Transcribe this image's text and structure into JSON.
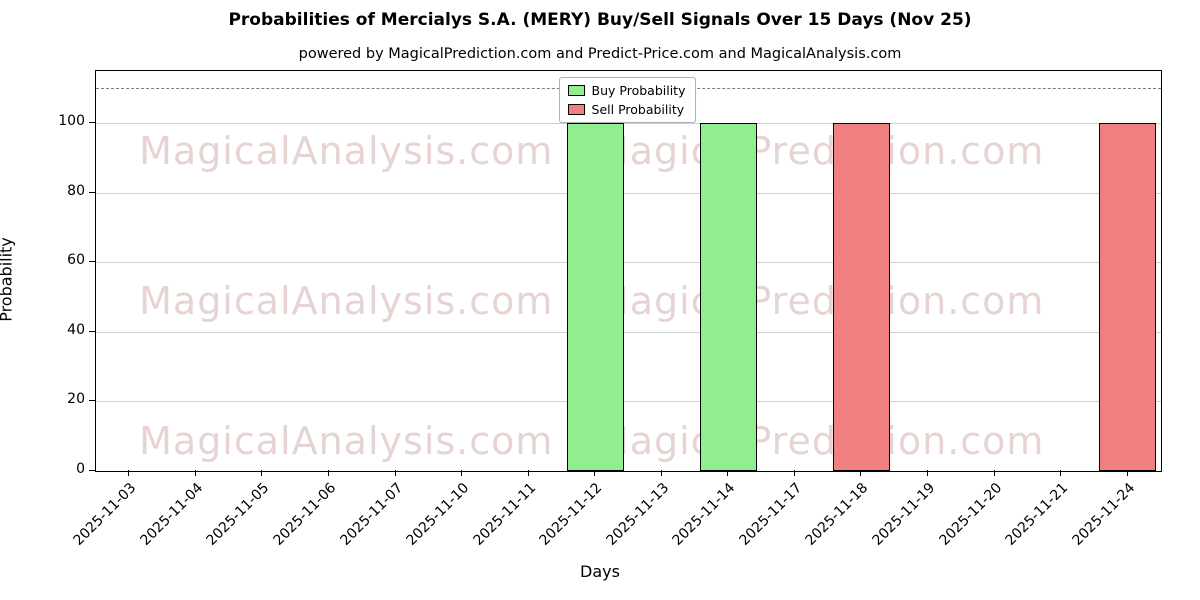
{
  "chart_data": {
    "type": "bar",
    "title": "Probabilities of Mercialys S.A. (MERY) Buy/Sell Signals Over 15 Days (Nov 25)",
    "subtitle": "powered by MagicalPrediction.com and Predict-Price.com and MagicalAnalysis.com",
    "xlabel": "Days",
    "ylabel": "Probability",
    "ylim": [
      0,
      115
    ],
    "yticks": [
      0,
      20,
      40,
      60,
      80,
      100
    ],
    "dashed_line_y": 110,
    "grid": true,
    "bar_edge_color": "#000000",
    "categories": [
      "2025-11-03",
      "2025-11-04",
      "2025-11-05",
      "2025-11-06",
      "2025-11-07",
      "2025-11-10",
      "2025-11-11",
      "2025-11-12",
      "2025-11-13",
      "2025-11-14",
      "2025-11-17",
      "2025-11-18",
      "2025-11-19",
      "2025-11-20",
      "2025-11-21",
      "2025-11-24"
    ],
    "series": [
      {
        "name": "Buy Probability",
        "color": "#90EE90",
        "values": [
          0,
          0,
          0,
          0,
          0,
          0,
          0,
          100,
          0,
          100,
          0,
          0,
          0,
          0,
          0,
          0
        ]
      },
      {
        "name": "Sell Probability",
        "color": "#F08080",
        "values": [
          0,
          0,
          0,
          0,
          0,
          0,
          0,
          0,
          0,
          0,
          0,
          100,
          0,
          0,
          0,
          100
        ]
      }
    ],
    "legend": {
      "position": "top-center",
      "entries": [
        {
          "label": "Buy Probability",
          "color": "#90EE90"
        },
        {
          "label": "Sell Probability",
          "color": "#F08080"
        }
      ]
    },
    "watermarks": [
      "MagicalAnalysis.com",
      "MagicalPrediction.com"
    ]
  }
}
